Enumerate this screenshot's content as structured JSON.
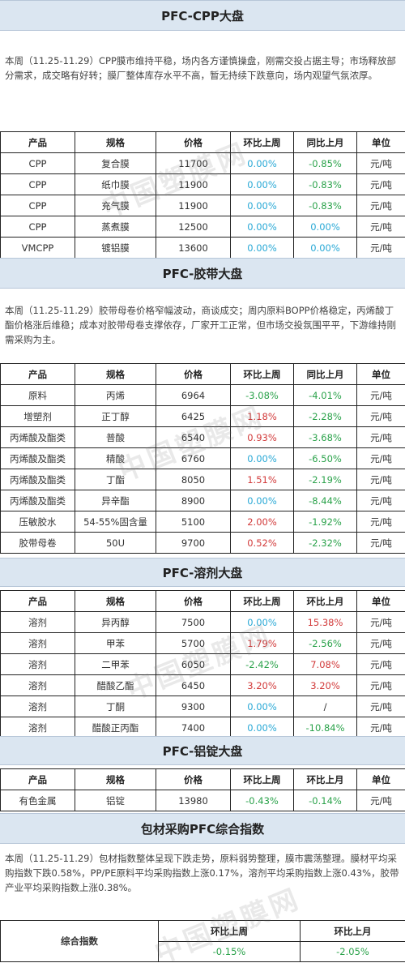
{
  "cpp": {
    "title": "PFC-CPP大盘",
    "paragraph": "本周（11.25-11.29）CPP膜市维持平稳，场内各方谨慎操盘，刚需交投占据主导；市场释放部分需求，成交略有好转；膜厂整体库存水平不高，暂无持续下跌意向，场内观望气氛浓厚。",
    "headers": [
      "产品",
      "规格",
      "价格",
      "环比上周",
      "同比上月",
      "单位"
    ],
    "rows": [
      {
        "product": "CPP",
        "spec": "复合膜",
        "price": "11700",
        "wow": "0.00%",
        "wow_color": "blue",
        "mom": "-0.85%",
        "mom_color": "green",
        "unit": "元/吨"
      },
      {
        "product": "CPP",
        "spec": "纸巾膜",
        "price": "11900",
        "wow": "0.00%",
        "wow_color": "blue",
        "mom": "-0.83%",
        "mom_color": "green",
        "unit": "元/吨"
      },
      {
        "product": "CPP",
        "spec": "充气膜",
        "price": "11900",
        "wow": "0.00%",
        "wow_color": "blue",
        "mom": "-0.83%",
        "mom_color": "green",
        "unit": "元/吨"
      },
      {
        "product": "CPP",
        "spec": "蒸煮膜",
        "price": "12500",
        "wow": "0.00%",
        "wow_color": "blue",
        "mom": "0.00%",
        "mom_color": "blue",
        "unit": "元/吨"
      },
      {
        "product": "VMCPP",
        "spec": "镀铝膜",
        "price": "13600",
        "wow": "0.00%",
        "wow_color": "blue",
        "mom": "0.00%",
        "mom_color": "blue",
        "unit": "元/吨"
      }
    ]
  },
  "tape": {
    "title": "PFC-胶带大盘",
    "paragraph": "本周（11.25-11.29）胶带母卷价格窄幅波动，商谈成交；周内原料BOPP价格稳定，丙烯酸丁酯价格涨后维稳；成本对胶带母卷支撑依存，厂家开工正常，但市场交投氛围平平，下游维持刚需采购为主。",
    "headers": [
      "产品",
      "规格",
      "价格",
      "环比上周",
      "同比上月",
      "单位"
    ],
    "rows": [
      {
        "product": "原料",
        "spec": "丙烯",
        "price": "6964",
        "wow": "-3.08%",
        "wow_color": "green",
        "mom": "-4.01%",
        "mom_color": "green",
        "unit": "元/吨"
      },
      {
        "product": "增塑剂",
        "spec": "正丁醇",
        "price": "6425",
        "wow": "1.18%",
        "wow_color": "red",
        "mom": "-2.28%",
        "mom_color": "green",
        "unit": "元/吨"
      },
      {
        "product": "丙烯酸及酯类",
        "spec": "普酸",
        "price": "6540",
        "wow": "0.93%",
        "wow_color": "red",
        "mom": "-3.68%",
        "mom_color": "green",
        "unit": "元/吨"
      },
      {
        "product": "丙烯酸及酯类",
        "spec": "精酸",
        "price": "6760",
        "wow": "0.00%",
        "wow_color": "blue",
        "mom": "-6.50%",
        "mom_color": "green",
        "unit": "元/吨"
      },
      {
        "product": "丙烯酸及酯类",
        "spec": "丁酯",
        "price": "8050",
        "wow": "1.51%",
        "wow_color": "red",
        "mom": "-2.19%",
        "mom_color": "green",
        "unit": "元/吨"
      },
      {
        "product": "丙烯酸及酯类",
        "spec": "异辛酯",
        "price": "8900",
        "wow": "0.00%",
        "wow_color": "blue",
        "mom": "-8.44%",
        "mom_color": "green",
        "unit": "元/吨"
      },
      {
        "product": "压敏胶水",
        "spec": "54-55%固含量",
        "price": "5100",
        "wow": "2.00%",
        "wow_color": "red",
        "mom": "-1.92%",
        "mom_color": "green",
        "unit": "元/吨"
      },
      {
        "product": "胶带母卷",
        "spec": "50U",
        "price": "9700",
        "wow": "0.52%",
        "wow_color": "red",
        "mom": "-2.32%",
        "mom_color": "green",
        "unit": "元/吨"
      }
    ]
  },
  "solvent": {
    "title": "PFC-溶剂大盘",
    "headers": [
      "产品",
      "规格",
      "价格",
      "环比上周",
      "环比上月",
      "单位"
    ],
    "rows": [
      {
        "product": "溶剂",
        "spec": "异丙醇",
        "price": "7500",
        "wow": "0.00%",
        "wow_color": "blue",
        "mom": "15.38%",
        "mom_color": "red",
        "unit": "元/吨"
      },
      {
        "product": "溶剂",
        "spec": "甲苯",
        "price": "5700",
        "wow": "1.79%",
        "wow_color": "red",
        "mom": "-2.56%",
        "mom_color": "green",
        "unit": "元/吨"
      },
      {
        "product": "溶剂",
        "spec": "二甲苯",
        "price": "6050",
        "wow": "-2.42%",
        "wow_color": "green",
        "mom": "7.08%",
        "mom_color": "red",
        "unit": "元/吨"
      },
      {
        "product": "溶剂",
        "spec": "醋酸乙酯",
        "price": "6450",
        "wow": "3.20%",
        "wow_color": "red",
        "mom": "3.20%",
        "mom_color": "red",
        "unit": "元/吨"
      },
      {
        "product": "溶剂",
        "spec": "丁酮",
        "price": "9300",
        "wow": "0.00%",
        "wow_color": "blue",
        "mom": "/",
        "mom_color": "plain",
        "unit": "元/吨"
      },
      {
        "product": "溶剂",
        "spec": "醋酸正丙酯",
        "price": "7400",
        "wow": "0.00%",
        "wow_color": "blue",
        "mom": "-10.84%",
        "mom_color": "green",
        "unit": "元/吨"
      }
    ]
  },
  "aluminum": {
    "title": "PFC-铝锭大盘",
    "headers": [
      "产品",
      "规格",
      "价格",
      "环比上周",
      "环比上月",
      "单位"
    ],
    "rows": [
      {
        "product": "有色金属",
        "spec": "铝锭",
        "price": "13980",
        "wow": "-0.43%",
        "wow_color": "green",
        "mom": "-0.14%",
        "mom_color": "green",
        "unit": "元/吨"
      }
    ]
  },
  "index": {
    "title": "包材采购PFC综合指数",
    "paragraph": "本周（11.25-11.29）包材指数整体呈现下跌走势，原料弱势整理，膜市震荡整理。膜材平均采购指数下跌0.58%，PP/PE原料平均采购指数上涨0.17%，溶剂平均采购指数上涨0.43%，胶带产业平均采购指数上涨0.38%。",
    "label": "综合指数",
    "headers": [
      "环比上周",
      "环比上月"
    ],
    "values": [
      "-0.15%",
      "-2.05%"
    ]
  },
  "watermark": "中国塑膜网",
  "colors": {
    "banner_bg": "#dbe6f1",
    "blue": "#2aa9d6",
    "green": "#2aa24a",
    "red": "#d23a3a"
  }
}
